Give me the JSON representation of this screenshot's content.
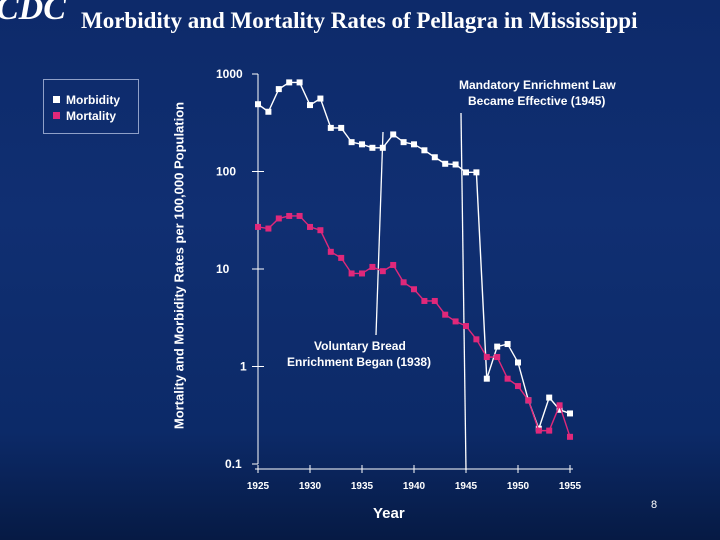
{
  "header": {
    "logo": "CDC",
    "title": "Morbidity and Mortality Rates of Pellagra in Mississippi"
  },
  "page_number": "8",
  "chart_data": {
    "type": "line",
    "title": "Morbidity and Mortality Rates of Pellagra in Mississippi",
    "xlabel": "Year",
    "ylabel": "Mortality and Morbidity Rates per 100,000 Population",
    "y_scale": "log",
    "ylim": [
      0.1,
      1000
    ],
    "xlim": [
      1925,
      1955
    ],
    "x_ticks": [
      "1925",
      "1930",
      "1935",
      "1940",
      "1945",
      "1950",
      "1955"
    ],
    "y_ticks": [
      "1000",
      "100",
      "10",
      "1",
      "0.1"
    ],
    "legend_position": "top-left, outside plot",
    "series": [
      {
        "name": "Morbidity",
        "color": "#ffffff",
        "x": [
          1925,
          1926,
          1927,
          1928,
          1929,
          1930,
          1931,
          1932,
          1933,
          1934,
          1935,
          1936,
          1937,
          1938,
          1939,
          1940,
          1941,
          1942,
          1943,
          1944,
          1945,
          1946,
          1947,
          1948,
          1949,
          1950,
          1951,
          1952,
          1953,
          1954,
          1955
        ],
        "values": [
          490,
          410,
          700,
          820,
          820,
          480,
          560,
          280,
          280,
          200,
          190,
          175,
          175,
          240,
          200,
          190,
          165,
          140,
          120,
          118,
          98,
          98,
          0.75,
          1.6,
          1.7,
          1.1,
          0.45,
          0.23,
          0.48,
          0.36,
          0.33
        ]
      },
      {
        "name": "Mortality",
        "color": "#e0287a",
        "x": [
          1925,
          1926,
          1927,
          1928,
          1929,
          1930,
          1931,
          1932,
          1933,
          1934,
          1935,
          1936,
          1937,
          1938,
          1939,
          1940,
          1941,
          1942,
          1943,
          1944,
          1945,
          1946,
          1947,
          1948,
          1949,
          1950,
          1951,
          1952,
          1953,
          1954,
          1955
        ],
        "values": [
          27,
          26,
          33,
          35,
          35,
          27,
          25,
          15,
          13,
          9,
          9,
          10.5,
          9.5,
          11,
          7.3,
          6.2,
          4.7,
          4.7,
          3.4,
          2.9,
          2.6,
          1.9,
          1.25,
          1.25,
          0.75,
          0.63,
          0.45,
          0.22,
          0.22,
          0.4,
          0.19
        ]
      }
    ],
    "annotations": [
      {
        "text_lines": [
          "Mandatory Enrichment Law",
          "Became Effective (1945)"
        ],
        "year": 1945
      },
      {
        "text_lines": [
          "Voluntary Bread",
          "Enrichment Began (1938)"
        ],
        "year": 1938
      }
    ]
  }
}
